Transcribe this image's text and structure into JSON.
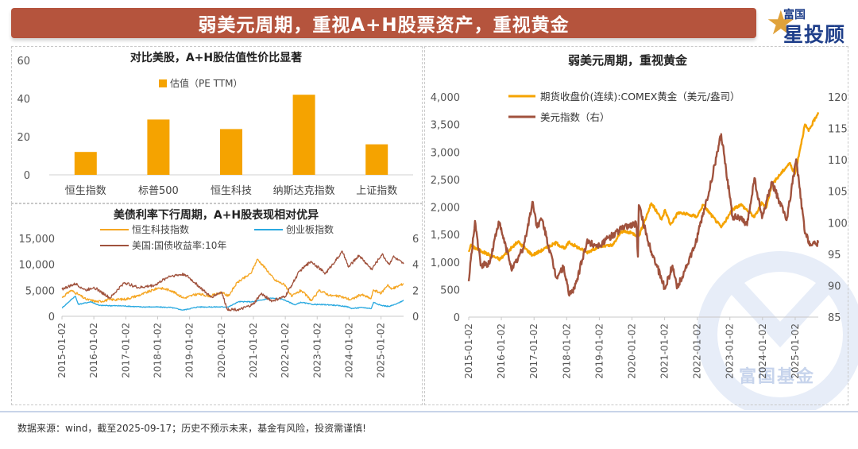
{
  "header": {
    "title": "弱美元周期，重视A+H股票资产，重视黄金"
  },
  "logo": {
    "top": "富国",
    "main": "星投顾"
  },
  "watermark": {
    "text": "富国基金"
  },
  "footer": {
    "text": "数据来源：wind，截至2025-09-17；历史不预示未来，基金有风险，投资需谨慎!"
  },
  "chart_data": [
    {
      "type": "bar",
      "title": "对比美股，A+H股估值性价比显著",
      "categories": [
        "恒生指数",
        "标普500",
        "恒生科技",
        "纳斯达克指数",
        "上证指数"
      ],
      "series": [
        {
          "name": "估值（PE TTM）",
          "values": [
            12,
            29,
            24,
            42,
            16
          ]
        }
      ],
      "ylim": [
        0,
        60
      ],
      "yticks": [
        "0",
        "20",
        "40",
        "60"
      ],
      "colors": {
        "bar": "#f5a300"
      },
      "legend": "top-center"
    },
    {
      "type": "line",
      "title": "美债利率下行周期，A+H股表现相对优异",
      "x_range": [
        "2015-01-02",
        "2025-09-17"
      ],
      "xticks": [
        "2015-01-02",
        "2016-01-02",
        "2017-01-02",
        "2018-01-02",
        "2019-01-02",
        "2020-01-02",
        "2021-01-02",
        "2022-01-02",
        "2023-01-02",
        "2024-01-02",
        "2025-01-02"
      ],
      "ylim_left": [
        0,
        15000
      ],
      "yticks_left": [
        "0",
        "5,000",
        "10,000",
        "15,000"
      ],
      "ylim_right": [
        0,
        6
      ],
      "yticks_right": [
        "0",
        "2",
        "4",
        "6"
      ],
      "legend": "top",
      "series": [
        {
          "name": "恒生科技指数",
          "axis": "left",
          "color": "#f5a623",
          "points": [
            [
              "2015-01-02",
              3600
            ],
            [
              "2015-04-15",
              5000
            ],
            [
              "2015-07-01",
              4300
            ],
            [
              "2015-10-01",
              3300
            ],
            [
              "2016-02-15",
              2800
            ],
            [
              "2016-07-01",
              3200
            ],
            [
              "2017-01-02",
              3300
            ],
            [
              "2017-07-01",
              4200
            ],
            [
              "2018-01-15",
              5500
            ],
            [
              "2018-06-01",
              5000
            ],
            [
              "2018-10-30",
              3500
            ],
            [
              "2019-04-01",
              4300
            ],
            [
              "2019-09-01",
              3900
            ],
            [
              "2020-01-02",
              4600
            ],
            [
              "2020-03-20",
              3900
            ],
            [
              "2020-07-01",
              6500
            ],
            [
              "2020-12-01",
              8200
            ],
            [
              "2021-02-17",
              11000
            ],
            [
              "2021-06-01",
              9000
            ],
            [
              "2021-09-01",
              7000
            ],
            [
              "2022-01-02",
              6000
            ],
            [
              "2022-03-15",
              3800
            ],
            [
              "2022-07-01",
              5000
            ],
            [
              "2022-10-30",
              3000
            ],
            [
              "2023-01-27",
              5000
            ],
            [
              "2023-06-01",
              4000
            ],
            [
              "2023-10-01",
              3800
            ],
            [
              "2024-01-22",
              3200
            ],
            [
              "2024-05-20",
              4200
            ],
            [
              "2024-09-10",
              3400
            ],
            [
              "2024-10-07",
              5100
            ],
            [
              "2025-01-02",
              4400
            ],
            [
              "2025-03-20",
              6100
            ],
            [
              "2025-05-01",
              5200
            ],
            [
              "2025-09-17",
              6300
            ]
          ]
        },
        {
          "name": "创业板指数",
          "axis": "left",
          "color": "#2aa9e0",
          "points": [
            [
              "2015-01-02",
              1600
            ],
            [
              "2015-06-03",
              3900
            ],
            [
              "2015-07-08",
              2300
            ],
            [
              "2015-12-01",
              2800
            ],
            [
              "2016-03-01",
              2100
            ],
            [
              "2016-12-01",
              2000
            ],
            [
              "2017-07-01",
              1800
            ],
            [
              "2017-12-01",
              1800
            ],
            [
              "2018-06-01",
              1700
            ],
            [
              "2018-10-19",
              1200
            ],
            [
              "2019-04-08",
              1800
            ],
            [
              "2019-12-01",
              1800
            ],
            [
              "2020-03-23",
              1800
            ],
            [
              "2020-07-13",
              2800
            ],
            [
              "2021-01-02",
              2800
            ],
            [
              "2021-07-22",
              3500
            ],
            [
              "2021-12-01",
              3300
            ],
            [
              "2022-04-26",
              2200
            ],
            [
              "2022-07-01",
              2700
            ],
            [
              "2022-10-31",
              2300
            ],
            [
              "2023-06-01",
              2200
            ],
            [
              "2023-12-01",
              1900
            ],
            [
              "2024-02-05",
              1500
            ],
            [
              "2024-06-01",
              1700
            ],
            [
              "2024-09-13",
              1500
            ],
            [
              "2024-10-08",
              2700
            ],
            [
              "2025-01-02",
              2100
            ],
            [
              "2025-04-07",
              1900
            ],
            [
              "2025-07-01",
              2400
            ],
            [
              "2025-09-17",
              3100
            ]
          ]
        },
        {
          "name": "美国:国债收益率:10年",
          "axis": "right",
          "color": "#a0523d",
          "points": [
            [
              "2015-01-02",
              2.1
            ],
            [
              "2015-06-10",
              2.5
            ],
            [
              "2015-10-01",
              2.0
            ],
            [
              "2016-01-02",
              2.25
            ],
            [
              "2016-07-06",
              1.4
            ],
            [
              "2016-12-15",
              2.6
            ],
            [
              "2017-06-01",
              2.2
            ],
            [
              "2017-12-01",
              2.4
            ],
            [
              "2018-05-17",
              3.1
            ],
            [
              "2018-11-08",
              3.24
            ],
            [
              "2019-03-01",
              2.6
            ],
            [
              "2019-09-03",
              1.47
            ],
            [
              "2020-01-02",
              1.88
            ],
            [
              "2020-03-09",
              0.54
            ],
            [
              "2020-08-04",
              0.52
            ],
            [
              "2020-12-31",
              0.92
            ],
            [
              "2021-03-31",
              1.74
            ],
            [
              "2021-08-04",
              1.17
            ],
            [
              "2021-12-31",
              1.52
            ],
            [
              "2022-06-14",
              3.48
            ],
            [
              "2022-10-24",
              4.24
            ],
            [
              "2023-04-06",
              3.3
            ],
            [
              "2023-10-19",
              4.98
            ],
            [
              "2023-12-27",
              3.79
            ],
            [
              "2024-04-25",
              4.7
            ],
            [
              "2024-09-16",
              3.62
            ],
            [
              "2025-01-14",
              4.79
            ],
            [
              "2025-04-04",
              4.0
            ],
            [
              "2025-05-21",
              4.6
            ],
            [
              "2025-09-17",
              4.03
            ]
          ]
        }
      ]
    },
    {
      "type": "line",
      "title": "弱美元周期，重视黄金",
      "x_range": [
        "2015-01-02",
        "2025-09-17"
      ],
      "xticks": [
        "2015-01-02",
        "2016-01-02",
        "2017-01-02",
        "2018-01-02",
        "2019-01-02",
        "2020-01-02",
        "2021-01-02",
        "2022-01-02",
        "2023-01-02",
        "2024-01-02",
        "2025-01-02"
      ],
      "ylim_left": [
        0,
        4000
      ],
      "yticks_left": [
        "0",
        "500",
        "1,000",
        "1,500",
        "2,000",
        "2,500",
        "3,000",
        "3,500",
        "4,000"
      ],
      "ylim_right": [
        85,
        120
      ],
      "yticks_right": [
        "85",
        "90",
        "95",
        "100",
        "105",
        "110",
        "115",
        "120"
      ],
      "legend": "top-left",
      "series": [
        {
          "name": "期货收盘价(连续):COMEX黄金（美元/盎司）",
          "axis": "left",
          "color": "#f5a300",
          "points": [
            [
              "2015-01-02",
              1186
            ],
            [
              "2015-01-22",
              1300
            ],
            [
              "2015-06-01",
              1190
            ],
            [
              "2015-12-17",
              1050
            ],
            [
              "2016-07-06",
              1370
            ],
            [
              "2016-12-15",
              1128
            ],
            [
              "2017-09-08",
              1350
            ],
            [
              "2017-12-12",
              1240
            ],
            [
              "2018-01-25",
              1360
            ],
            [
              "2018-08-16",
              1176
            ],
            [
              "2019-01-02",
              1285
            ],
            [
              "2019-06-01",
              1300
            ],
            [
              "2019-09-04",
              1560
            ],
            [
              "2020-01-02",
              1528
            ],
            [
              "2020-03-19",
              1470
            ],
            [
              "2020-08-06",
              2070
            ],
            [
              "2020-11-30",
              1770
            ],
            [
              "2021-01-06",
              1950
            ],
            [
              "2021-03-08",
              1680
            ],
            [
              "2021-06-01",
              1900
            ],
            [
              "2021-12-31",
              1828
            ],
            [
              "2022-03-08",
              2040
            ],
            [
              "2022-09-28",
              1630
            ],
            [
              "2023-02-01",
              1950
            ],
            [
              "2023-05-03",
              2050
            ],
            [
              "2023-10-05",
              1820
            ],
            [
              "2023-12-28",
              2080
            ],
            [
              "2024-02-14",
              1990
            ],
            [
              "2024-04-12",
              2400
            ],
            [
              "2024-10-30",
              2800
            ],
            [
              "2024-12-30",
              2600
            ],
            [
              "2025-04-21",
              3500
            ],
            [
              "2025-06-01",
              3380
            ],
            [
              "2025-09-17",
              3720
            ]
          ]
        },
        {
          "name": "美元指数（右）",
          "axis": "right",
          "color": "#a0523d",
          "points": [
            [
              "2015-01-02",
              90.7
            ],
            [
              "2015-03-13",
              100.3
            ],
            [
              "2015-05-15",
              93.2
            ],
            [
              "2015-08-24",
              93.5
            ],
            [
              "2015-12-02",
              100.2
            ],
            [
              "2016-05-03",
              92.6
            ],
            [
              "2016-09-01",
              95.9
            ],
            [
              "2016-12-20",
              103.3
            ],
            [
              "2017-01-31",
              99.5
            ],
            [
              "2017-04-01",
              100.5
            ],
            [
              "2017-09-08",
              91.3
            ],
            [
              "2017-12-01",
              93.0
            ],
            [
              "2018-01-25",
              88.6
            ],
            [
              "2018-04-01",
              89.5
            ],
            [
              "2018-08-15",
              96.9
            ],
            [
              "2019-01-02",
              96.4
            ],
            [
              "2019-10-01",
              99.3
            ],
            [
              "2020-02-20",
              99.9
            ],
            [
              "2020-03-09",
              94.6
            ],
            [
              "2020-03-19",
              102.8
            ],
            [
              "2020-07-01",
              97.0
            ],
            [
              "2021-01-06",
              89.5
            ],
            [
              "2021-03-31",
              93.2
            ],
            [
              "2021-05-25",
              89.7
            ],
            [
              "2021-12-01",
              96.0
            ],
            [
              "2022-05-13",
              104.9
            ],
            [
              "2022-09-27",
              114.1
            ],
            [
              "2023-02-01",
              101.0
            ],
            [
              "2023-04-14",
              100.8
            ],
            [
              "2023-07-14",
              99.6
            ],
            [
              "2023-10-03",
              107.1
            ],
            [
              "2023-12-28",
              100.7
            ],
            [
              "2024-04-16",
              106.5
            ],
            [
              "2024-09-27",
              100.4
            ],
            [
              "2025-01-13",
              110.1
            ],
            [
              "2025-04-21",
              98.3
            ],
            [
              "2025-07-01",
              96.4
            ],
            [
              "2025-09-17",
              96.8
            ]
          ]
        }
      ]
    }
  ]
}
